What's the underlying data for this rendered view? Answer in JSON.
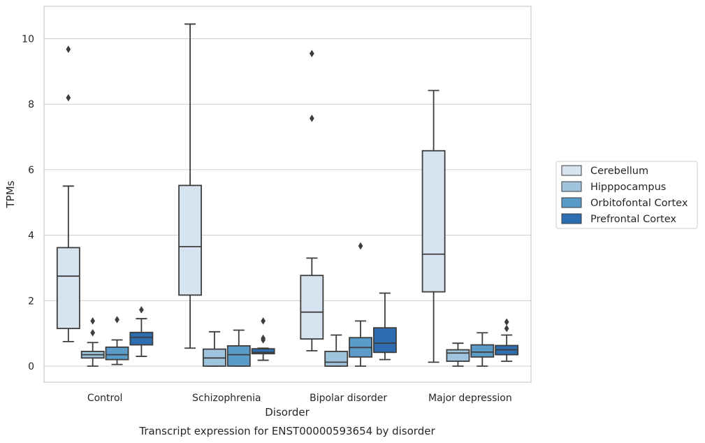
{
  "chart_data": {
    "type": "box",
    "title": "Transcript expression for ENST00000593654 by disorder",
    "xlabel": "Disorder",
    "ylabel": "TPMs",
    "ylim": [
      -0.5,
      11.0
    ],
    "yticks": [
      0,
      2,
      4,
      6,
      8,
      10
    ],
    "grid": true,
    "legend_position": "right",
    "categories": [
      "Control",
      "Schizophrenia",
      "Bipolar disorder",
      "Major depression"
    ],
    "series": [
      {
        "name": "Cerebellum",
        "color": "#d6e4f2",
        "boxes": [
          {
            "whisker_low": 0.75,
            "q1": 1.15,
            "median": 2.75,
            "q3": 3.62,
            "whisker_high": 5.5,
            "outliers": [
              8.2,
              9.68
            ]
          },
          {
            "whisker_low": 0.55,
            "q1": 2.17,
            "median": 3.65,
            "q3": 5.52,
            "whisker_high": 10.45,
            "outliers": []
          },
          {
            "whisker_low": 0.47,
            "q1": 0.83,
            "median": 1.65,
            "q3": 2.77,
            "whisker_high": 3.3,
            "outliers": [
              7.57,
              9.55
            ]
          },
          {
            "whisker_low": 0.12,
            "q1": 2.27,
            "median": 3.42,
            "q3": 6.58,
            "whisker_high": 8.42,
            "outliers": []
          }
        ]
      },
      {
        "name": "Hipppocampus",
        "color": "#9ec4de",
        "boxes": [
          {
            "whisker_low": 0.0,
            "q1": 0.25,
            "median": 0.35,
            "q3": 0.45,
            "whisker_high": 0.72,
            "outliers": [
              1.02,
              1.38
            ]
          },
          {
            "whisker_low": 0.0,
            "q1": 0.0,
            "median": 0.25,
            "q3": 0.52,
            "whisker_high": 1.05,
            "outliers": []
          },
          {
            "whisker_low": 0.0,
            "q1": 0.0,
            "median": 0.12,
            "q3": 0.45,
            "whisker_high": 0.95,
            "outliers": []
          },
          {
            "whisker_low": 0.0,
            "q1": 0.15,
            "median": 0.4,
            "q3": 0.5,
            "whisker_high": 0.7,
            "outliers": []
          }
        ]
      },
      {
        "name": "Orbitofontal Cortex",
        "color": "#5a9bc9",
        "boxes": [
          {
            "whisker_low": 0.05,
            "q1": 0.2,
            "median": 0.35,
            "q3": 0.58,
            "whisker_high": 0.8,
            "outliers": [
              1.42
            ]
          },
          {
            "whisker_low": 0.0,
            "q1": 0.0,
            "median": 0.35,
            "q3": 0.62,
            "whisker_high": 1.1,
            "outliers": []
          },
          {
            "whisker_low": 0.0,
            "q1": 0.28,
            "median": 0.57,
            "q3": 0.87,
            "whisker_high": 1.38,
            "outliers": [
              3.67
            ]
          },
          {
            "whisker_low": 0.0,
            "q1": 0.28,
            "median": 0.43,
            "q3": 0.65,
            "whisker_high": 1.02,
            "outliers": []
          }
        ]
      },
      {
        "name": "Prefrontal Cortex",
        "color": "#2c6eb0",
        "boxes": [
          {
            "whisker_low": 0.3,
            "q1": 0.65,
            "median": 0.88,
            "q3": 1.03,
            "whisker_high": 1.45,
            "outliers": [
              1.72
            ]
          },
          {
            "whisker_low": 0.18,
            "q1": 0.38,
            "median": 0.42,
            "q3": 0.53,
            "whisker_high": 0.55,
            "outliers": [
              0.8,
              0.85,
              1.38
            ]
          },
          {
            "whisker_low": 0.2,
            "q1": 0.42,
            "median": 0.7,
            "q3": 1.17,
            "whisker_high": 2.23,
            "outliers": []
          },
          {
            "whisker_low": 0.15,
            "q1": 0.35,
            "median": 0.5,
            "q3": 0.63,
            "whisker_high": 0.95,
            "outliers": [
              1.15,
              1.35
            ]
          }
        ]
      }
    ]
  }
}
